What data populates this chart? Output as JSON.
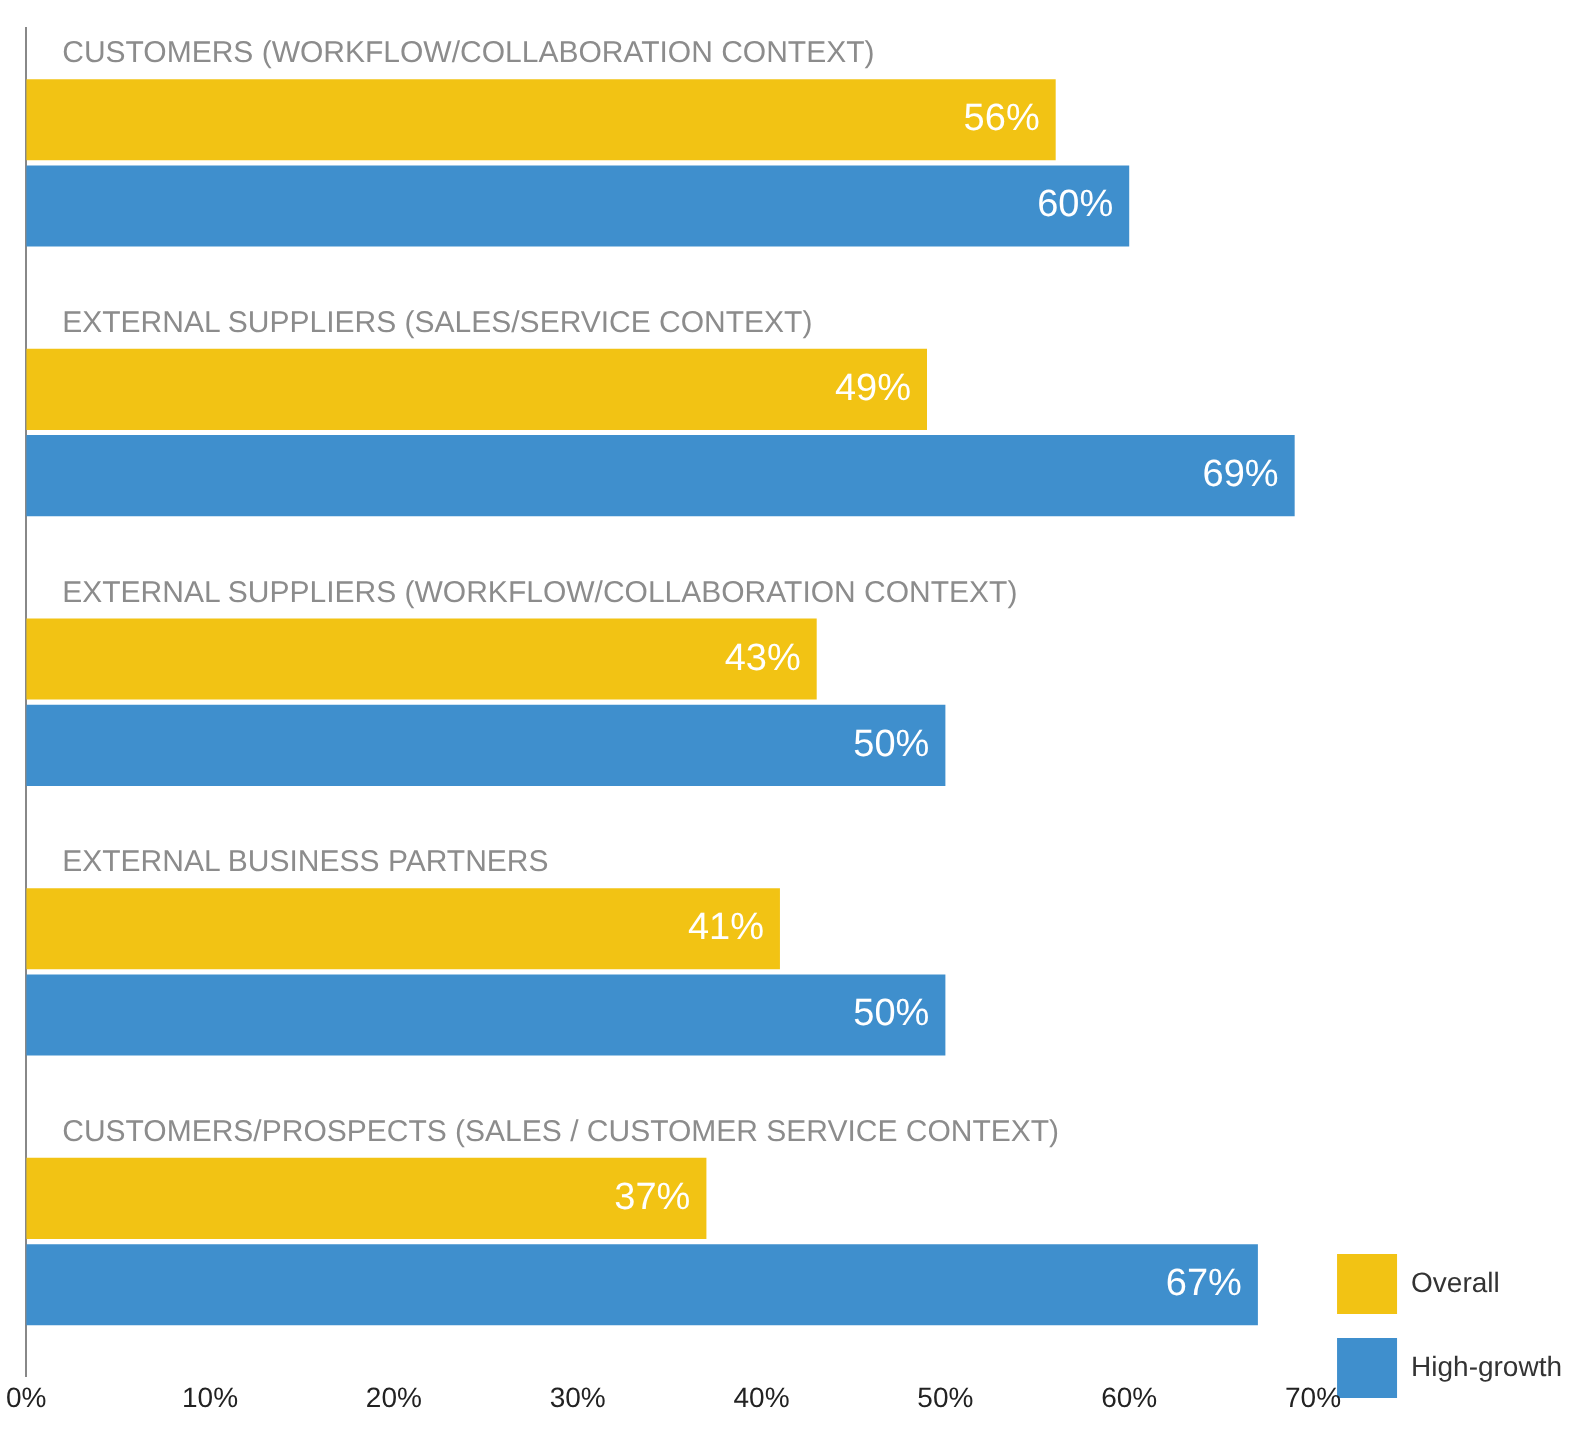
{
  "chart_data": {
    "type": "bar",
    "orientation": "horizontal",
    "categories": [
      "CUSTOMERS (WORKFLOW/COLLABORATION CONTEXT)",
      "EXTERNAL SUPPLIERS (SALES/SERVICE CONTEXT)",
      "EXTERNAL SUPPLIERS (WORKFLOW/COLLABORATION CONTEXT)",
      "EXTERNAL BUSINESS PARTNERS",
      "CUSTOMERS/PROSPECTS (SALES / CUSTOMER SERVICE CONTEXT)"
    ],
    "series": [
      {
        "name": "Overall",
        "color": "#f2c314",
        "values": [
          56,
          49,
          43,
          41,
          37
        ],
        "value_labels": [
          "56%",
          "49%",
          "43%",
          "41%",
          "37%"
        ]
      },
      {
        "name": "High-growth",
        "color": "#3f8fcd",
        "values": [
          60,
          69,
          50,
          50,
          67
        ],
        "value_labels": [
          "60%",
          "69%",
          "50%",
          "50%",
          "67%"
        ]
      }
    ],
    "xlim": [
      0,
      70
    ],
    "xticks": [
      {
        "value": 0,
        "label": "0%"
      },
      {
        "value": 10,
        "label": "10%"
      },
      {
        "value": 20,
        "label": "20%"
      },
      {
        "value": 30,
        "label": "30%"
      },
      {
        "value": 40,
        "label": "40%"
      },
      {
        "value": 50,
        "label": "50%"
      },
      {
        "value": 60,
        "label": "60%"
      },
      {
        "value": 70,
        "label": "70%"
      }
    ],
    "grid": false,
    "legend": "bottom right"
  }
}
